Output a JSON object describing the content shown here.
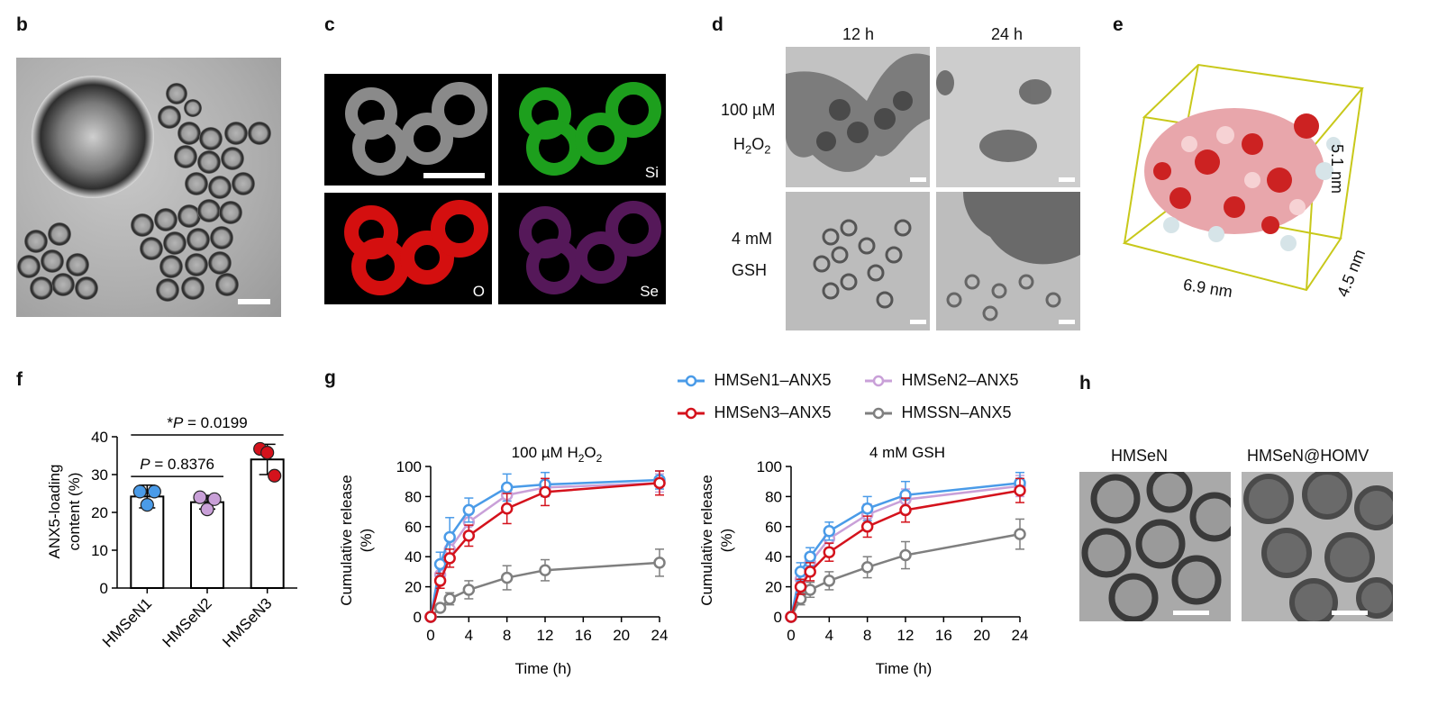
{
  "panels": {
    "b": {
      "label": "b"
    },
    "c": {
      "label": "c",
      "channels": [
        "Si",
        "O",
        "Se"
      ]
    },
    "d": {
      "label": "d",
      "col_headers": [
        "12 h",
        "24 h"
      ],
      "row1_line1": "100 µM",
      "row1_line2_main": "H",
      "row1_line2_sub1": "2",
      "row1_line2_o": "O",
      "row1_line2_sub2": "2",
      "row2_line1": "4 mM",
      "row2_line2": "GSH"
    },
    "e": {
      "label": "e",
      "dim_x": "6.9 nm",
      "dim_y": "5.1 nm",
      "dim_z": "4.5 nm"
    },
    "f": {
      "label": "f"
    },
    "g": {
      "label": "g"
    },
    "h": {
      "label": "h",
      "left_title": "HMSeN",
      "right_title": "HMSeN@HOMV"
    }
  },
  "legend": {
    "entries": [
      {
        "name": "HMSeN1–ANX5",
        "color": "#4a9be8"
      },
      {
        "name": "HMSeN2–ANX5",
        "color": "#c9a0d8"
      },
      {
        "name": "HMSeN3–ANX5",
        "color": "#d4121c"
      },
      {
        "name": "HMSSN–ANX5",
        "color": "#7f7f7f"
      }
    ]
  },
  "chart_data": [
    {
      "type": "bar",
      "panel": "f",
      "categories": [
        "HMSeN1",
        "HMSeN2",
        "HMSeN3"
      ],
      "values": [
        24.2,
        22.7,
        34.0
      ],
      "errors": [
        3.0,
        1.8,
        4.0
      ],
      "points": [
        [
          25.5,
          22.0,
          25.5
        ],
        [
          24.0,
          20.8,
          23.5
        ],
        [
          36.8,
          35.8,
          29.7
        ]
      ],
      "point_colors": [
        "#4a9be8",
        "#c9a0d8",
        "#d4121c"
      ],
      "ylabel_line1": "ANX5-loading",
      "ylabel_line2": "content (%)",
      "ylim": [
        0,
        40
      ],
      "yticks": [
        "0",
        "10",
        "20",
        "30",
        "40"
      ],
      "annotations": [
        {
          "star": "*",
          "p": "P",
          "text": " = 0.0199",
          "between": [
            "HMSeN1",
            "HMSeN3"
          ]
        },
        {
          "star": "",
          "p": "P",
          "text": " = 0.8376",
          "between": [
            "HMSeN1",
            "HMSeN2"
          ]
        }
      ]
    },
    {
      "type": "line",
      "panel": "g-left",
      "title_main": "100 µM H",
      "title_sub1": "2",
      "title_o": "O",
      "title_sub2": "2",
      "xlabel": "Time (h)",
      "ylabel_line1": "Cumulative release",
      "ylabel_line2": "(%)",
      "x": [
        0,
        1,
        2,
        4,
        8,
        12,
        24
      ],
      "xlim": [
        0,
        24
      ],
      "ylim": [
        0,
        100
      ],
      "xticks": [
        "0",
        "4",
        "8",
        "12",
        "16",
        "20",
        "24"
      ],
      "yticks": [
        "0",
        "20",
        "40",
        "60",
        "80",
        "100"
      ],
      "series": [
        {
          "name": "HMSSN–ANX5",
          "color": "#7f7f7f",
          "values": [
            0,
            6,
            12,
            18,
            26,
            31,
            36
          ],
          "errors": [
            0,
            2,
            4,
            6,
            8,
            7,
            9
          ]
        },
        {
          "name": "HMSeN2–ANX5",
          "color": "#c9a0d8",
          "values": [
            0,
            28,
            45,
            63,
            81,
            86,
            89
          ],
          "errors": [
            0,
            5,
            8,
            8,
            7,
            6,
            6
          ]
        },
        {
          "name": "HMSeN1–ANX5",
          "color": "#4a9be8",
          "values": [
            0,
            35,
            53,
            71,
            86,
            88,
            91
          ],
          "errors": [
            0,
            8,
            13,
            8,
            9,
            8,
            6
          ]
        },
        {
          "name": "HMSeN3–ANX5",
          "color": "#d4121c",
          "values": [
            0,
            24,
            39,
            54,
            72,
            83,
            89
          ],
          "errors": [
            0,
            5,
            6,
            7,
            10,
            9,
            8
          ]
        }
      ]
    },
    {
      "type": "line",
      "panel": "g-right",
      "title": "4 mM GSH",
      "xlabel": "Time (h)",
      "ylabel_line1": "Cumulative release",
      "ylabel_line2": "(%)",
      "x": [
        0,
        1,
        2,
        4,
        8,
        12,
        24
      ],
      "xlim": [
        0,
        24
      ],
      "ylim": [
        0,
        100
      ],
      "xticks": [
        "0",
        "4",
        "8",
        "12",
        "16",
        "20",
        "24"
      ],
      "yticks": [
        "0",
        "20",
        "40",
        "60",
        "80",
        "100"
      ],
      "series": [
        {
          "name": "HMSSN–ANX5",
          "color": "#7f7f7f",
          "values": [
            0,
            12,
            18,
            24,
            33,
            41,
            55
          ],
          "errors": [
            0,
            4,
            5,
            6,
            7,
            9,
            10
          ]
        },
        {
          "name": "HMSeN2–ANX5",
          "color": "#c9a0d8",
          "values": [
            0,
            25,
            36,
            52,
            68,
            78,
            87
          ],
          "errors": [
            0,
            5,
            5,
            6,
            7,
            7,
            7
          ]
        },
        {
          "name": "HMSeN1–ANX5",
          "color": "#4a9be8",
          "values": [
            0,
            30,
            40,
            57,
            72,
            81,
            89
          ],
          "errors": [
            0,
            6,
            6,
            6,
            8,
            9,
            7
          ]
        },
        {
          "name": "HMSeN3–ANX5",
          "color": "#d4121c",
          "values": [
            0,
            20,
            30,
            43,
            60,
            71,
            84
          ],
          "errors": [
            0,
            5,
            6,
            6,
            7,
            8,
            8
          ]
        }
      ]
    }
  ]
}
